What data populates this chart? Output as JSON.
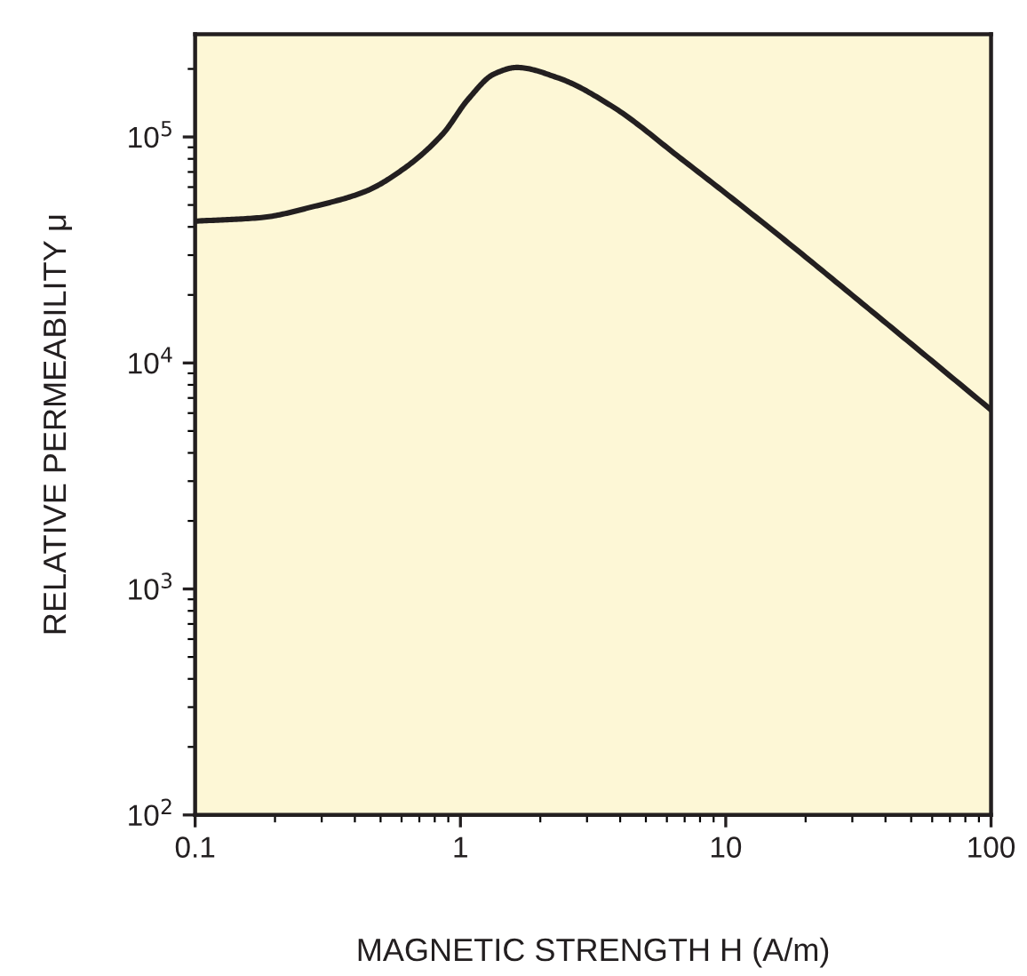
{
  "chart_data": {
    "type": "line",
    "xlabel": "MAGNETIC STRENGTH H (A/m)",
    "ylabel": "RELATIVE PERMEABILITY μ",
    "log": "xy",
    "xlim": [
      0.1,
      100
    ],
    "ylim": [
      100,
      285000
    ],
    "xticks": [
      0.1,
      1,
      10,
      100
    ],
    "yticks": [
      {
        "value": 100,
        "label": "10$^{2}$"
      },
      {
        "value": 1000,
        "label": "10$^{3}$"
      },
      {
        "value": 10000,
        "label": "10$^{4}$"
      },
      {
        "value": 100000,
        "label": "10$^{5}$"
      }
    ],
    "grid": false,
    "legend": false,
    "marker": "none",
    "line_style": "solid",
    "series": [
      {
        "color": "#231f20",
        "x": [
          0.1,
          0.178,
          0.279,
          0.438,
          0.612,
          0.857,
          1.07,
          1.34,
          1.63,
          2.35,
          3.68,
          6.82,
          15.8,
          36.7,
          100
        ],
        "values": [
          42400,
          44000,
          49200,
          57400,
          72400,
          103000,
          147000,
          190000,
          203000,
          182000,
          138000,
          79800,
          36800,
          16400,
          6200
        ]
      }
    ]
  }
}
